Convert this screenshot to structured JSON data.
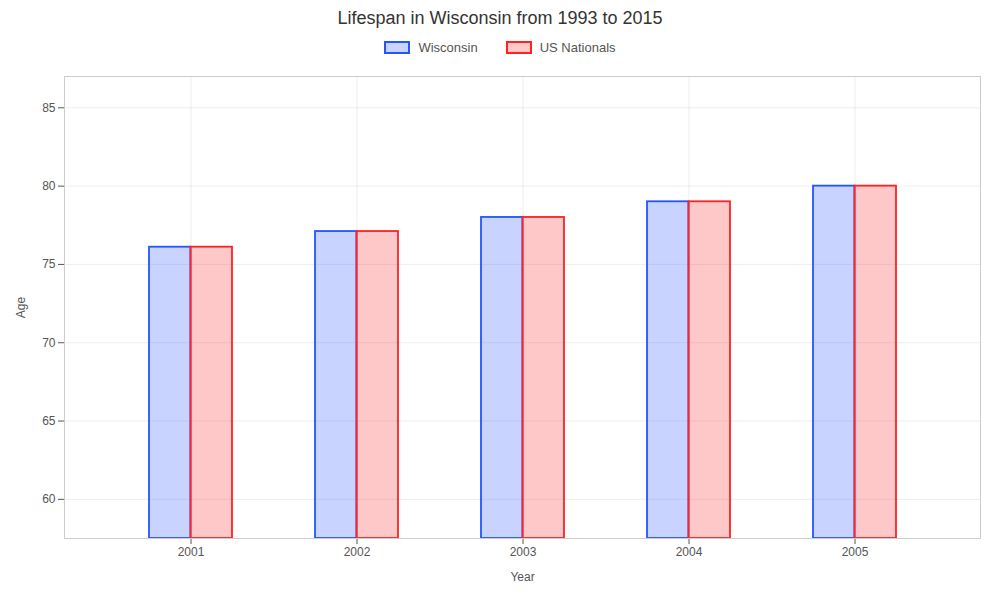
{
  "chart_data": {
    "type": "bar",
    "title": "Lifespan in Wisconsin from 1993 to 2015",
    "xlabel": "Year",
    "ylabel": "Age",
    "categories": [
      "2001",
      "2002",
      "2003",
      "2004",
      "2005"
    ],
    "series": [
      {
        "name": "Wisconsin",
        "color": "#2255ff",
        "values": [
          76.1,
          77.1,
          78.0,
          79.0,
          80.0
        ]
      },
      {
        "name": "US Nationals",
        "color": "#ff2222",
        "values": [
          76.1,
          77.1,
          78.0,
          79.0,
          80.0
        ]
      }
    ],
    "ylim": [
      57.5,
      87
    ],
    "yticks": [
      60,
      65,
      70,
      75,
      80,
      85
    ],
    "grid": true,
    "legend": "top"
  }
}
